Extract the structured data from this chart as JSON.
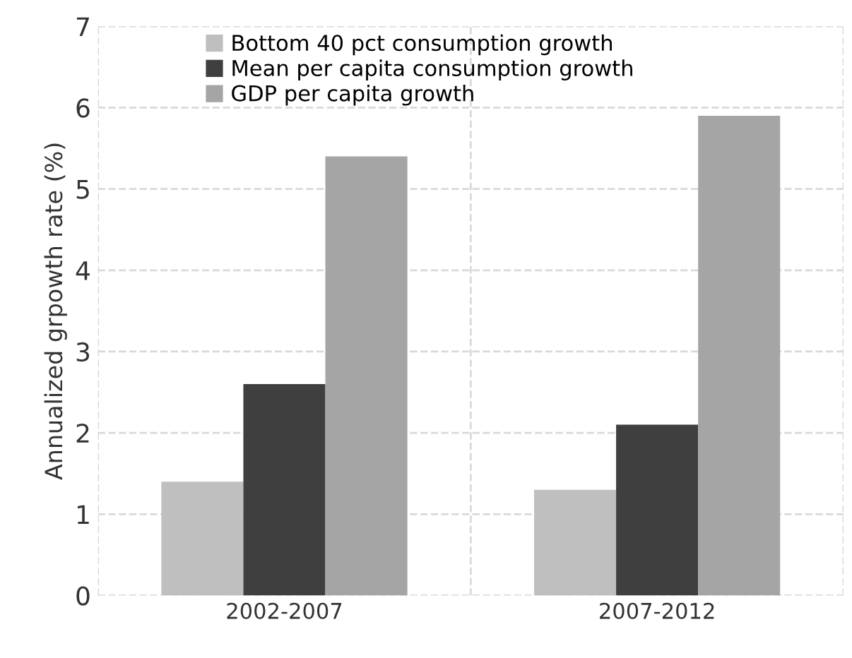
{
  "chart_data": {
    "type": "bar",
    "ylabel": "Annualized grpowth rate (%)",
    "categories": [
      "2002-2007",
      "2007-2012"
    ],
    "series": [
      {
        "name": "Bottom 40 pct consumption growth",
        "color": "#bfbfbf",
        "values": [
          1.4,
          1.3
        ]
      },
      {
        "name": "Mean per capita consumption growth",
        "color": "#3f3f3f",
        "values": [
          2.6,
          2.1
        ]
      },
      {
        "name": "GDP per capita growth",
        "color": "#a5a5a5",
        "values": [
          5.4,
          5.9
        ]
      }
    ],
    "ylim": [
      0,
      7
    ],
    "yticks": [
      0,
      1,
      2,
      3,
      4,
      5,
      6,
      7
    ],
    "grid": true,
    "legend": "top left",
    "line_style": "dashed"
  }
}
